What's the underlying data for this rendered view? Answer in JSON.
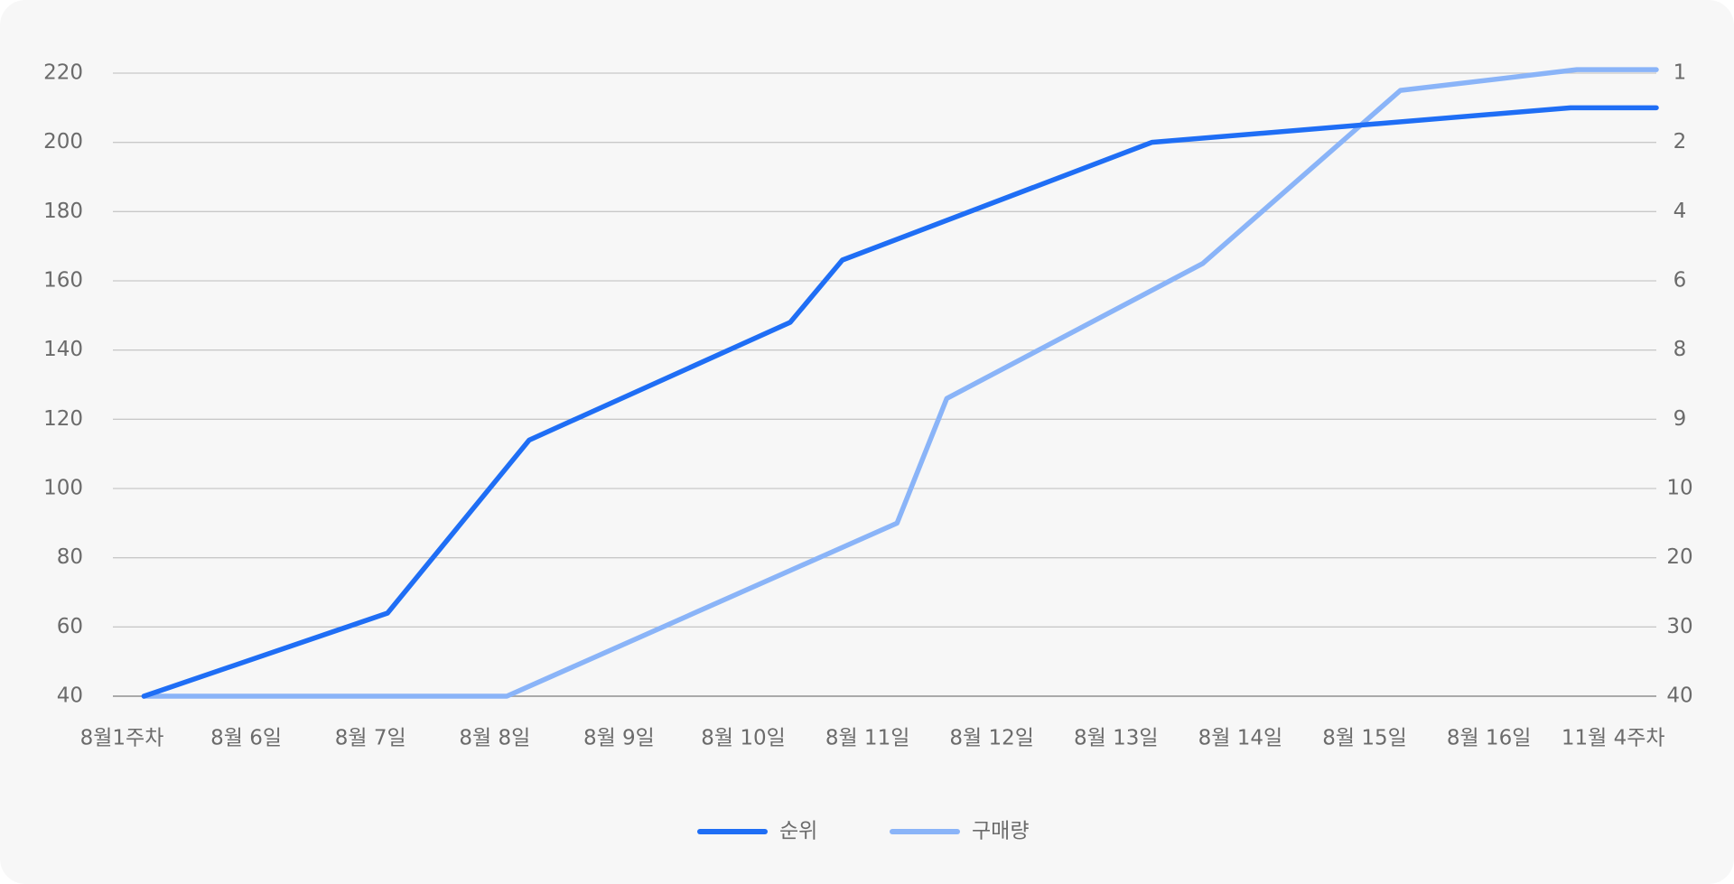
{
  "chart_data": {
    "type": "line",
    "xlim": [
      -0.07,
      12.35
    ],
    "xticks": [
      {
        "value": 0,
        "label": "8월1주차"
      },
      {
        "value": 1,
        "label": "8월 6일"
      },
      {
        "value": 2,
        "label": "8월 7일"
      },
      {
        "value": 3,
        "label": "8월 8일"
      },
      {
        "value": 4,
        "label": "8월 9일"
      },
      {
        "value": 5,
        "label": "8월 10일"
      },
      {
        "value": 6,
        "label": "8월 11일"
      },
      {
        "value": 7,
        "label": "8월 12일"
      },
      {
        "value": 8,
        "label": "8월 13일"
      },
      {
        "value": 9,
        "label": "8월 14일"
      },
      {
        "value": 10,
        "label": "8월 15일"
      },
      {
        "value": 11,
        "label": "8월 16일"
      },
      {
        "value": 12,
        "label": "11월 4주차"
      }
    ],
    "ylim": [
      40,
      220
    ],
    "yticks": [
      40,
      60,
      80,
      100,
      120,
      140,
      160,
      180,
      200,
      220
    ],
    "y2lim": [
      40,
      1
    ],
    "y2scale": "evenly spaced ticks",
    "y2ticks": [
      40,
      30,
      20,
      10,
      9,
      8,
      6,
      4,
      2,
      1
    ],
    "grid": true,
    "legend": "bottom",
    "series": [
      {
        "name": "순위",
        "color": "#1f6ef5",
        "axis": "y2",
        "x": [
          0.18,
          2.14,
          3.28,
          5.38,
          5.8,
          8.29,
          11.66,
          12.35
        ],
        "values": [
          40,
          28,
          9.3,
          7.2,
          5.4,
          2,
          1.5,
          1.5
        ]
      },
      {
        "name": "구매량",
        "color": "#8ab4f8",
        "x": [
          0.18,
          3.1,
          6.24,
          6.64,
          8.7,
          10.29,
          11.71,
          12.35
        ],
        "values": [
          40,
          40,
          90,
          126,
          165,
          215,
          221,
          221
        ]
      }
    ]
  }
}
